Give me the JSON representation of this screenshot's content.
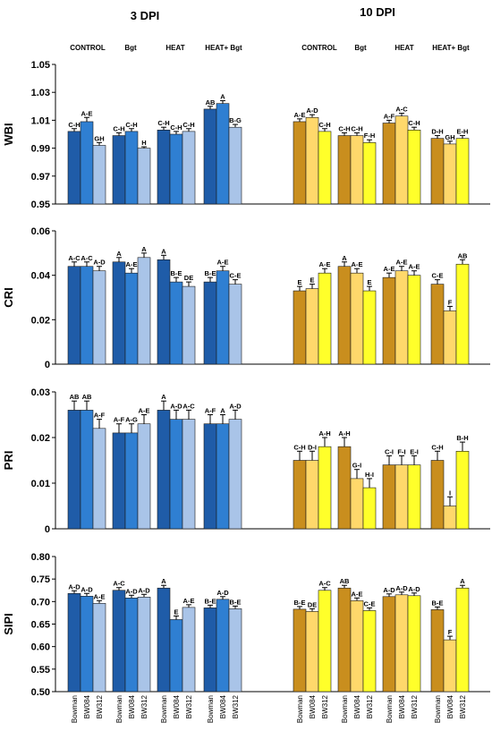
{
  "header": {
    "left_title": "3 DPI",
    "right_title": "10 DPI",
    "treatments": [
      "CONTROL",
      "Bgt",
      "HEAT",
      "HEAT+ Bgt"
    ]
  },
  "genotypes": [
    "Bowman",
    "BW084",
    "BW312"
  ],
  "colors": {
    "left": [
      "#1f5ca8",
      "#2f7fd2",
      "#a9c4e8"
    ],
    "right": [
      "#c98e1e",
      "#ffd86b",
      "#ffff2a"
    ]
  },
  "chart_data": [
    {
      "type": "bar",
      "title": "",
      "ylabel": "WBI",
      "ylim": [
        0.95,
        1.05
      ],
      "yticks": [
        "0.95",
        "0.97",
        "0.99",
        "1.01",
        "1.03",
        "1.05"
      ],
      "left": {
        "values": [
          [
            1.002,
            1.009,
            0.992
          ],
          [
            0.999,
            1.002,
            0.99
          ],
          [
            1.003,
            1.0,
            1.002
          ],
          [
            1.018,
            1.022,
            1.005
          ]
        ],
        "errors": [
          [
            0.002,
            0.003,
            0.002
          ],
          [
            0.002,
            0.002,
            0.001
          ],
          [
            0.002,
            0.002,
            0.002
          ],
          [
            0.002,
            0.002,
            0.002
          ]
        ],
        "labels": [
          [
            "C-H",
            "A-E",
            "GH"
          ],
          [
            "C-H",
            "C-H",
            "H"
          ],
          [
            "C-H",
            "C-H",
            "C-H"
          ],
          [
            "AB",
            "A",
            "B-G"
          ]
        ]
      },
      "right": {
        "values": [
          [
            1.009,
            1.012,
            1.002
          ],
          [
            0.999,
            0.999,
            0.994
          ],
          [
            1.008,
            1.013,
            1.003
          ],
          [
            0.997,
            0.993,
            0.997
          ]
        ],
        "errors": [
          [
            0.002,
            0.002,
            0.002
          ],
          [
            0.002,
            0.002,
            0.002
          ],
          [
            0.002,
            0.002,
            0.002
          ],
          [
            0.002,
            0.002,
            0.002
          ]
        ],
        "labels": [
          [
            "A-E",
            "A-D",
            "C-H"
          ],
          [
            "C-H",
            "C-H",
            "F-H"
          ],
          [
            "A-F",
            "A-C",
            "C-H"
          ],
          [
            "D-H",
            "GH",
            "E-H"
          ]
        ]
      }
    },
    {
      "type": "bar",
      "title": "",
      "ylabel": "CRI",
      "ylim": [
        0,
        0.06
      ],
      "yticks": [
        "0",
        "0.02",
        "0.04",
        "0.06"
      ],
      "left": {
        "values": [
          [
            0.044,
            0.044,
            0.042
          ],
          [
            0.046,
            0.041,
            0.048
          ],
          [
            0.047,
            0.037,
            0.035
          ],
          [
            0.037,
            0.042,
            0.036
          ]
        ],
        "errors": [
          [
            0.002,
            0.002,
            0.002
          ],
          [
            0.002,
            0.002,
            0.002
          ],
          [
            0.002,
            0.002,
            0.002
          ],
          [
            0.002,
            0.002,
            0.002
          ]
        ],
        "labels": [
          [
            "A-C",
            "A-C",
            "A-D"
          ],
          [
            "A",
            "A-E",
            "A"
          ],
          [
            "A",
            "B-E",
            "DE"
          ],
          [
            "B-E",
            "A-E",
            "C-E"
          ]
        ]
      },
      "right": {
        "values": [
          [
            0.033,
            0.034,
            0.041
          ],
          [
            0.044,
            0.041,
            0.033
          ],
          [
            0.039,
            0.042,
            0.04
          ],
          [
            0.036,
            0.024,
            0.045
          ]
        ],
        "errors": [
          [
            0.002,
            0.002,
            0.002
          ],
          [
            0.002,
            0.002,
            0.002
          ],
          [
            0.002,
            0.002,
            0.002
          ],
          [
            0.002,
            0.002,
            0.002
          ]
        ],
        "labels": [
          [
            "E",
            "E",
            "A-E"
          ],
          [
            "A",
            "A-E",
            "E"
          ],
          [
            "A-E",
            "A-E",
            "A-E"
          ],
          [
            "C-E",
            "F",
            "AB"
          ]
        ]
      }
    },
    {
      "type": "bar",
      "title": "",
      "ylabel": "PRI",
      "ylim": [
        0,
        0.03
      ],
      "yticks": [
        "0",
        "0.01",
        "0.02",
        "0.03"
      ],
      "left": {
        "values": [
          [
            0.026,
            0.026,
            0.022
          ],
          [
            0.021,
            0.021,
            0.023
          ],
          [
            0.026,
            0.024,
            0.024
          ],
          [
            0.023,
            0.023,
            0.024
          ]
        ],
        "errors": [
          [
            0.002,
            0.002,
            0.002
          ],
          [
            0.002,
            0.002,
            0.002
          ],
          [
            0.002,
            0.002,
            0.002
          ],
          [
            0.002,
            0.002,
            0.002
          ]
        ],
        "labels": [
          [
            "AB",
            "AB",
            "A-F"
          ],
          [
            "A-F",
            "A-G",
            "A-E"
          ],
          [
            "A",
            "A-D",
            "A-C"
          ],
          [
            "A-F",
            "A",
            "A-D"
          ]
        ]
      },
      "right": {
        "values": [
          [
            0.015,
            0.015,
            0.018
          ],
          [
            0.018,
            0.011,
            0.009
          ],
          [
            0.014,
            0.014,
            0.014
          ],
          [
            0.015,
            0.005,
            0.017
          ]
        ],
        "errors": [
          [
            0.002,
            0.002,
            0.002
          ],
          [
            0.002,
            0.002,
            0.002
          ],
          [
            0.002,
            0.002,
            0.002
          ],
          [
            0.002,
            0.002,
            0.002
          ]
        ],
        "labels": [
          [
            "C-H",
            "D-I",
            "A-H"
          ],
          [
            "A-H",
            "G-I",
            "H-I"
          ],
          [
            "C-I",
            "F-I",
            "E-I"
          ],
          [
            "C-H",
            "I",
            "B-H"
          ]
        ]
      }
    },
    {
      "type": "bar",
      "title": "",
      "ylabel": "SIPI",
      "ylim": [
        0.5,
        0.8
      ],
      "yticks": [
        "0.50",
        "0.55",
        "0.60",
        "0.65",
        "0.70",
        "0.75",
        "0.80"
      ],
      "left": {
        "values": [
          [
            0.718,
            0.712,
            0.696
          ],
          [
            0.725,
            0.708,
            0.71
          ],
          [
            0.73,
            0.66,
            0.687
          ],
          [
            0.686,
            0.705,
            0.684
          ]
        ],
        "errors": [
          [
            0.006,
            0.006,
            0.006
          ],
          [
            0.006,
            0.006,
            0.006
          ],
          [
            0.006,
            0.008,
            0.006
          ],
          [
            0.006,
            0.006,
            0.006
          ]
        ],
        "labels": [
          [
            "A-D",
            "A-D",
            "A-E"
          ],
          [
            "A-C",
            "A-D",
            "A-D"
          ],
          [
            "A",
            "E",
            "A-E"
          ],
          [
            "B-E",
            "A-D",
            "B-E"
          ]
        ]
      },
      "right": {
        "values": [
          [
            0.683,
            0.678,
            0.725
          ],
          [
            0.73,
            0.702,
            0.68
          ],
          [
            0.711,
            0.715,
            0.713
          ],
          [
            0.682,
            0.615,
            0.73
          ]
        ],
        "errors": [
          [
            0.006,
            0.006,
            0.006
          ],
          [
            0.006,
            0.006,
            0.006
          ],
          [
            0.006,
            0.006,
            0.006
          ],
          [
            0.006,
            0.008,
            0.006
          ]
        ],
        "labels": [
          [
            "B-E",
            "DE",
            "A-C"
          ],
          [
            "AB",
            "A-E",
            "C-E"
          ],
          [
            "A-D",
            "A-D",
            "A-D"
          ],
          [
            "B-E",
            "F",
            "A"
          ]
        ]
      }
    }
  ]
}
